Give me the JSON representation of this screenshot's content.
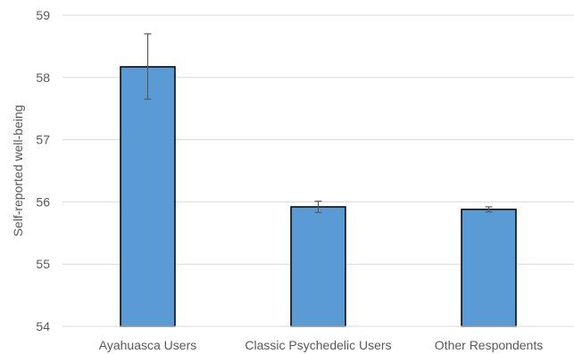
{
  "chart_data": {
    "type": "bar",
    "categories": [
      "Ayahuasca Users",
      "Classic Psychedelic Users",
      "Other Respondents"
    ],
    "values": [
      58.17,
      55.92,
      55.88
    ],
    "error_bars": {
      "lower": [
        57.65,
        55.83,
        55.84
      ],
      "upper": [
        58.7,
        56.01,
        55.92
      ]
    },
    "title": "",
    "xlabel": "",
    "ylabel": "Self-reported well-being",
    "ylim": [
      54,
      59
    ],
    "yticks": [
      "54",
      "55",
      "56",
      "57",
      "58",
      "59"
    ],
    "grid": true,
    "colors": {
      "bar_fill": "#5b9bd5",
      "bar_stroke": "#000000",
      "grid": "#d9d9d9",
      "error_bar": "#595959",
      "text": "#595959"
    }
  }
}
